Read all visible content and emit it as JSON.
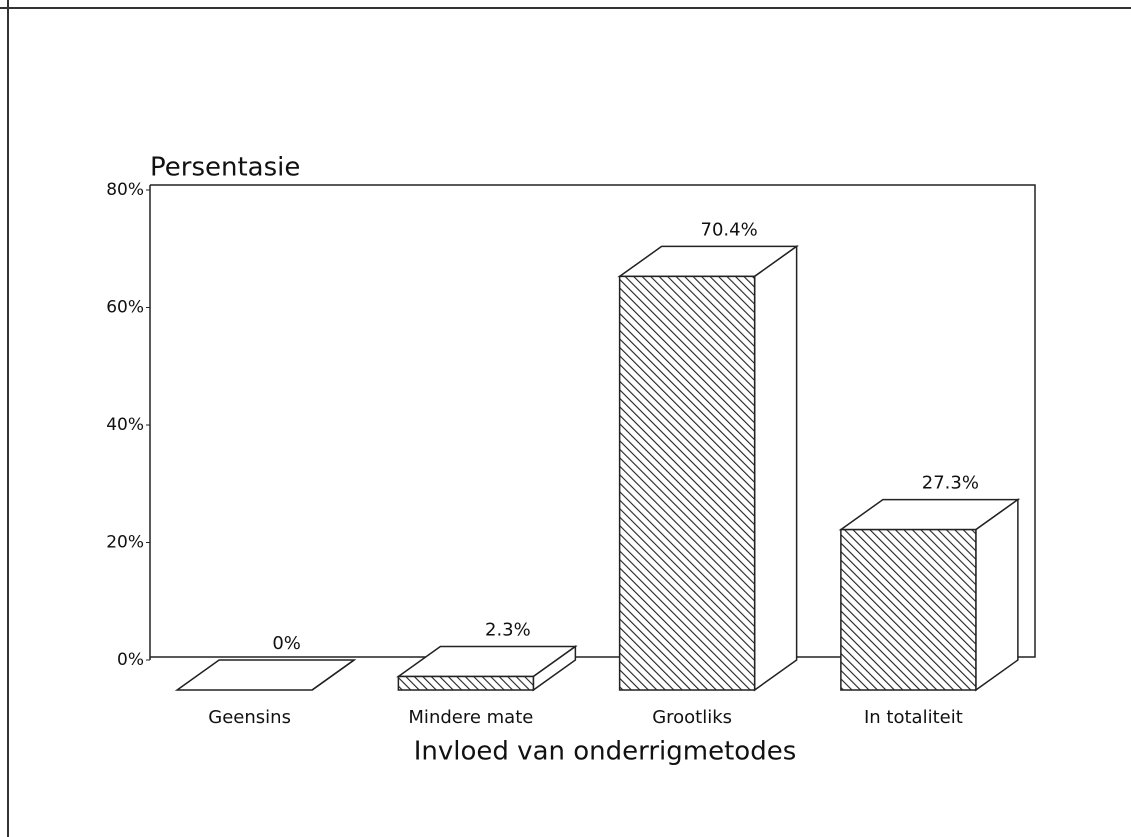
{
  "chart_data": {
    "type": "bar3d",
    "ylabel": "Persentasie",
    "xlabel": "Invloed van onderrigmetodes",
    "categories": [
      "Geensins",
      "Mindere mate",
      "Grootliks",
      "In totaliteit"
    ],
    "values": [
      0,
      2.3,
      70.4,
      27.3
    ],
    "value_labels": [
      "0%",
      "2.3%",
      "70.4%",
      "27.3%"
    ],
    "ylim": [
      0,
      80
    ],
    "yticks": [
      {
        "value": 0,
        "label": "0%"
      },
      {
        "value": 20,
        "label": "20%"
      },
      {
        "value": 40,
        "label": "40%"
      },
      {
        "value": 60,
        "label": "60%"
      },
      {
        "value": 80,
        "label": "80%"
      }
    ],
    "color": "#222222"
  }
}
